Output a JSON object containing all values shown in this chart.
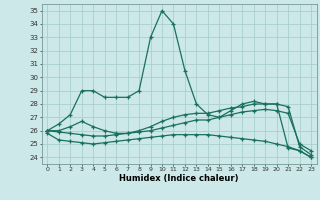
{
  "xlabel": "Humidex (Indice chaleur)",
  "bg_color": "#cce8e8",
  "grid_color": "#aacece",
  "line_color": "#1a7060",
  "xlim": [
    -0.5,
    23.5
  ],
  "ylim": [
    23.5,
    35.5
  ],
  "yticks": [
    24,
    25,
    26,
    27,
    28,
    29,
    30,
    31,
    32,
    33,
    34,
    35
  ],
  "xticks": [
    0,
    1,
    2,
    3,
    4,
    5,
    6,
    7,
    8,
    9,
    10,
    11,
    12,
    13,
    14,
    15,
    16,
    17,
    18,
    19,
    20,
    21,
    22,
    23
  ],
  "line1_x": [
    0,
    1,
    2,
    3,
    4,
    5,
    6,
    7,
    8,
    9,
    10,
    11,
    12,
    13,
    14,
    15,
    16,
    17,
    18,
    19,
    20,
    21,
    22,
    23
  ],
  "line1_y": [
    26.0,
    26.5,
    27.2,
    29.0,
    29.0,
    28.5,
    28.5,
    28.5,
    29.0,
    33.0,
    35.0,
    34.0,
    30.5,
    28.0,
    27.2,
    27.0,
    27.5,
    28.0,
    28.2,
    28.0,
    28.0,
    24.7,
    24.5,
    24.0
  ],
  "line2_x": [
    0,
    1,
    2,
    3,
    4,
    5,
    6,
    7,
    8,
    9,
    10,
    11,
    12,
    13,
    14,
    15,
    16,
    17,
    18,
    19,
    20,
    21,
    22,
    23
  ],
  "line2_y": [
    26.0,
    26.0,
    26.3,
    26.7,
    26.3,
    26.0,
    25.8,
    25.8,
    26.0,
    26.3,
    26.7,
    27.0,
    27.2,
    27.3,
    27.3,
    27.5,
    27.7,
    27.8,
    28.0,
    28.0,
    28.0,
    27.8,
    24.8,
    24.2
  ],
  "line3_x": [
    0,
    1,
    2,
    3,
    4,
    5,
    6,
    7,
    8,
    9,
    10,
    11,
    12,
    13,
    14,
    15,
    16,
    17,
    18,
    19,
    20,
    21,
    22,
    23
  ],
  "line3_y": [
    26.0,
    25.9,
    25.8,
    25.7,
    25.6,
    25.6,
    25.7,
    25.8,
    25.9,
    26.0,
    26.2,
    26.4,
    26.6,
    26.8,
    26.8,
    27.0,
    27.2,
    27.4,
    27.5,
    27.6,
    27.5,
    27.3,
    25.0,
    24.5
  ],
  "line4_x": [
    0,
    1,
    2,
    3,
    4,
    5,
    6,
    7,
    8,
    9,
    10,
    11,
    12,
    13,
    14,
    15,
    16,
    17,
    18,
    19,
    20,
    21,
    22,
    23
  ],
  "line4_y": [
    25.8,
    25.3,
    25.2,
    25.1,
    25.0,
    25.1,
    25.2,
    25.3,
    25.4,
    25.5,
    25.6,
    25.7,
    25.7,
    25.7,
    25.7,
    25.6,
    25.5,
    25.4,
    25.3,
    25.2,
    25.0,
    24.8,
    24.5,
    24.0
  ]
}
